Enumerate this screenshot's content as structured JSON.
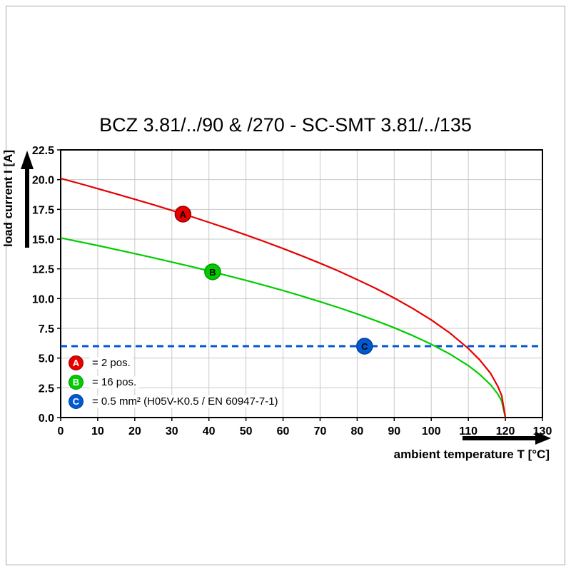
{
  "chart_data": {
    "type": "line",
    "title": "BCZ 3.81/../90 & /270 - SC-SMT 3.81/../135",
    "xlabel": "ambient temperature T [°C]",
    "ylabel": "load current I [A]",
    "xlim": [
      0,
      130
    ],
    "ylim": [
      0,
      22.5
    ],
    "grid": true,
    "x_ticks": [
      0,
      10,
      20,
      30,
      40,
      50,
      60,
      70,
      80,
      90,
      100,
      110,
      120,
      130
    ],
    "x_tick_labels": [
      "0",
      "10",
      "20",
      "30",
      "40",
      "50",
      "60",
      "70",
      "80",
      "90",
      "100",
      "110",
      "120",
      "130"
    ],
    "y_ticks": [
      0,
      2.5,
      5,
      7.5,
      10,
      12.5,
      15,
      17.5,
      20,
      22.5
    ],
    "y_tick_labels": [
      "0.0",
      "2.5",
      "5.0",
      "7.5",
      "10.0",
      "12.5",
      "15.0",
      "17.5",
      "20.0",
      "22.5"
    ],
    "legend_position": "bottom-left-inside",
    "series": [
      {
        "name": "A",
        "legend": "= 2 pos.",
        "color": "#e60000",
        "edge": "#990000",
        "width": 2.2,
        "marker": {
          "t": 33,
          "i": 17.1
        },
        "points": [
          [
            0,
            20.1
          ],
          [
            5,
            19.68
          ],
          [
            10,
            19.24
          ],
          [
            15,
            18.8
          ],
          [
            20,
            18.35
          ],
          [
            25,
            17.89
          ],
          [
            30,
            17.41
          ],
          [
            35,
            16.92
          ],
          [
            40,
            16.41
          ],
          [
            45,
            15.89
          ],
          [
            50,
            15.35
          ],
          [
            55,
            14.79
          ],
          [
            60,
            14.21
          ],
          [
            65,
            13.6
          ],
          [
            70,
            12.97
          ],
          [
            75,
            12.31
          ],
          [
            80,
            11.6
          ],
          [
            85,
            10.86
          ],
          [
            90,
            10.05
          ],
          [
            95,
            9.17
          ],
          [
            100,
            8.21
          ],
          [
            105,
            7.11
          ],
          [
            110,
            5.8
          ],
          [
            113,
            4.87
          ],
          [
            116,
            3.72
          ],
          [
            118,
            2.6
          ],
          [
            119,
            1.84
          ],
          [
            120,
            0
          ]
        ]
      },
      {
        "name": "B",
        "legend": "= 16 pos.",
        "color": "#00cc00",
        "edge": "#009900",
        "width": 2.2,
        "marker": {
          "t": 41,
          "i": 12.25
        },
        "points": [
          [
            0,
            15.1
          ],
          [
            5,
            14.78
          ],
          [
            10,
            14.46
          ],
          [
            15,
            14.12
          ],
          [
            20,
            13.78
          ],
          [
            25,
            13.43
          ],
          [
            30,
            13.07
          ],
          [
            35,
            12.71
          ],
          [
            40,
            12.33
          ],
          [
            45,
            11.93
          ],
          [
            50,
            11.53
          ],
          [
            55,
            11.11
          ],
          [
            60,
            10.68
          ],
          [
            65,
            10.22
          ],
          [
            70,
            9.74
          ],
          [
            75,
            9.24
          ],
          [
            80,
            8.71
          ],
          [
            85,
            8.15
          ],
          [
            90,
            7.55
          ],
          [
            95,
            6.89
          ],
          [
            100,
            6.16
          ],
          [
            105,
            5.34
          ],
          [
            110,
            4.36
          ],
          [
            113,
            3.65
          ],
          [
            116,
            2.76
          ],
          [
            118,
            1.95
          ],
          [
            119,
            1.38
          ],
          [
            120,
            0
          ]
        ]
      },
      {
        "name": "C",
        "legend": "= 0.5 mm² (H05V-K0.5 / EN 60947-7-1)",
        "color": "#0059d0",
        "edge": "#003f9e",
        "width": 3,
        "dash": "9 6",
        "marker": {
          "t": 82,
          "i": 6
        },
        "points": [
          [
            0,
            6
          ],
          [
            130,
            6
          ]
        ]
      }
    ]
  }
}
